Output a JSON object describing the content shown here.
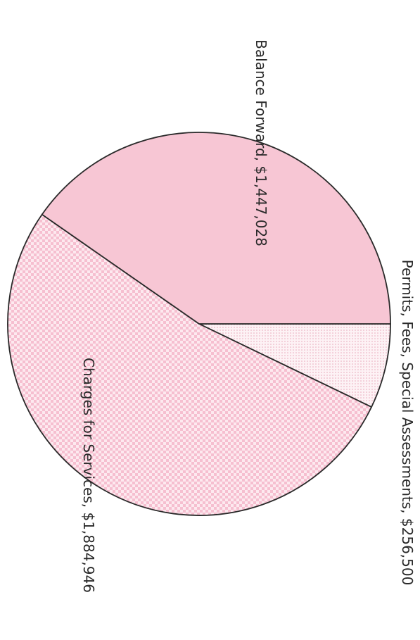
{
  "chart_data": {
    "type": "pie",
    "categories": [
      "Permits, Fees, Special Assessments,",
      "Charges for Services,",
      "Balance Forward,"
    ],
    "values": [
      256500,
      1884946,
      1447028
    ],
    "value_labels": [
      "$256,500",
      "$1,884,946",
      "$1,447,028"
    ],
    "colors": [
      "#f9dfe7",
      "#fbd9e3",
      "#f7c6d4"
    ]
  }
}
